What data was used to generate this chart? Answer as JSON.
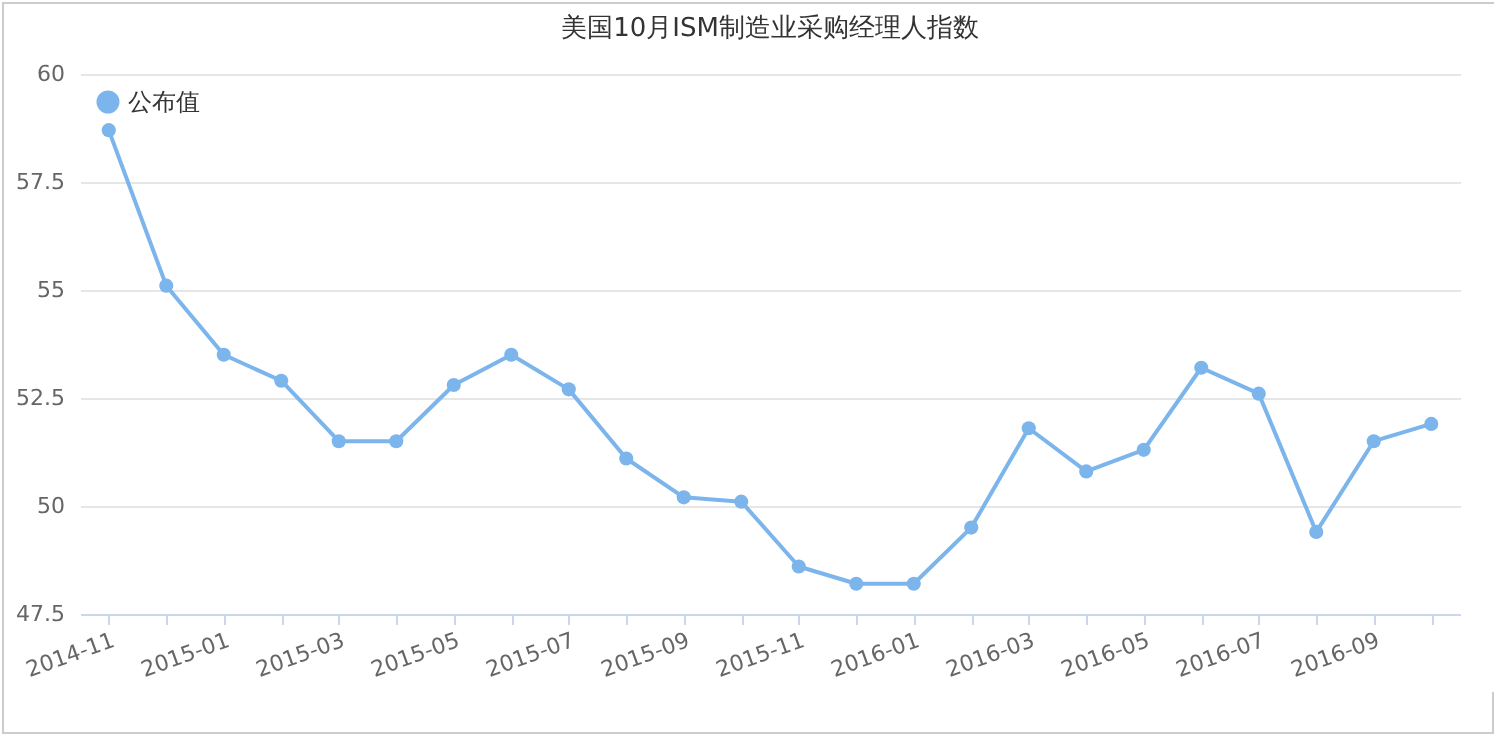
{
  "chart_data": {
    "type": "line",
    "title": "美国10月ISM制造业采购经理人指数",
    "categories": [
      "2014-11",
      null,
      "2015-01",
      null,
      "2015-03",
      null,
      "2015-05",
      null,
      "2015-07",
      null,
      "2015-09",
      null,
      "2015-11",
      null,
      "2016-01",
      null,
      "2016-03",
      null,
      "2016-05",
      null,
      "2016-07",
      null,
      "2016-09",
      null
    ],
    "series": [
      {
        "name": "公布值",
        "color": "#7cb5ec",
        "values": [
          58.7,
          55.1,
          53.5,
          52.9,
          51.5,
          51.5,
          52.8,
          53.5,
          52.7,
          51.1,
          50.2,
          50.1,
          48.6,
          48.2,
          48.2,
          49.5,
          51.8,
          50.8,
          51.3,
          53.2,
          52.6,
          49.4,
          51.5,
          51.9
        ]
      }
    ],
    "ylim": [
      47.5,
      60
    ],
    "yticks": [
      47.5,
      50,
      52.5,
      55,
      57.5,
      60
    ],
    "grid": "y",
    "legend": "top left",
    "marker": "circle",
    "line_style": "solid"
  }
}
